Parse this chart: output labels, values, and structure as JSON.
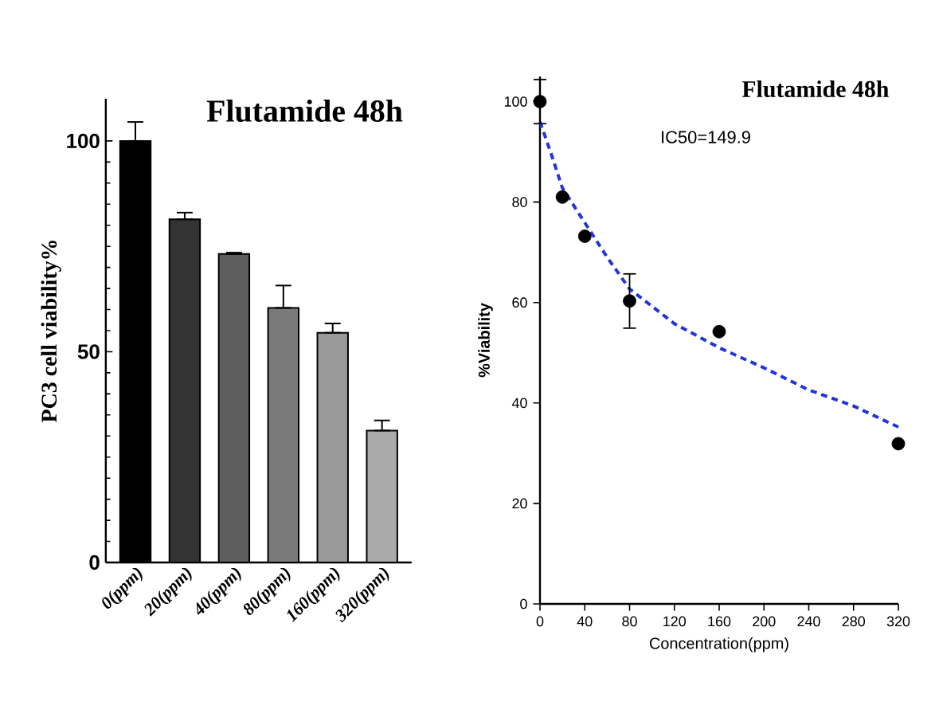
{
  "chart_data": [
    {
      "type": "bar",
      "title": "Flutamide   48h",
      "ylabel": "PC3 cell viability%",
      "categories": [
        "0(ppm)",
        "20(ppm)",
        "40(ppm)",
        "80(ppm)",
        "160(ppm)",
        "320(ppm)"
      ],
      "values": [
        100,
        81.4,
        73.2,
        60.4,
        54.5,
        31.3
      ],
      "colors": [
        "#000000",
        "#333333",
        "#5e5e5e",
        "#7a7a7a",
        "#9a9a9a",
        "#aaaaaa"
      ],
      "errors": [
        [
          100,
          104.5
        ],
        [
          81.4,
          83
        ],
        [
          73.2,
          73.5
        ],
        [
          60.4,
          65.7
        ],
        [
          54.5,
          56.7
        ],
        [
          31.3,
          33.7
        ]
      ],
      "ylim": [
        0,
        110
      ],
      "yticks": [
        0,
        50,
        100
      ]
    },
    {
      "type": "scatter",
      "title": "Flutamide   48h",
      "xlabel": "Concentration(ppm)",
      "ylabel": "%Viability",
      "annotations": [
        "IC50=149.9"
      ],
      "series": [
        {
          "type": "scatter",
          "color": "#000000",
          "marker": "circle",
          "x": [
            0,
            20,
            40,
            80,
            160,
            320
          ],
          "values": [
            100,
            81,
            73.2,
            60.3,
            54.2,
            31.9
          ],
          "errors": [
            4.4,
            null,
            null,
            5.4,
            null,
            null
          ]
        },
        {
          "type": "line",
          "color": "#2233dd",
          "line_style": "dashed",
          "marker": "none",
          "x": [
            0,
            10,
            20,
            40,
            60,
            80,
            120,
            160,
            200,
            240,
            280,
            320
          ],
          "values": [
            96,
            89.6,
            82.8,
            75.9,
            69,
            62.7,
            55.8,
            51,
            47,
            42.6,
            39.4,
            35.2
          ]
        }
      ],
      "xlim": [
        0,
        320
      ],
      "ylim": [
        0,
        105
      ],
      "xticks": [
        0,
        40,
        80,
        120,
        160,
        200,
        240,
        280,
        320
      ],
      "yticks": [
        0,
        20,
        40,
        60,
        80,
        100
      ]
    }
  ]
}
